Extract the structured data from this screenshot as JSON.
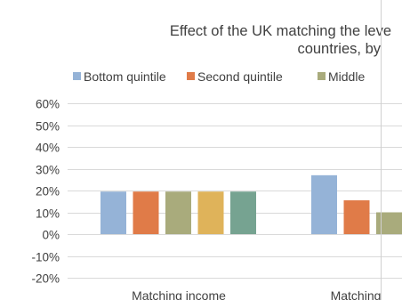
{
  "colors": {
    "background": "#ffffff",
    "text": "#404040",
    "gridline": "#d9d9d9",
    "zero_line": "#d9d9d9",
    "frame_edge": "#d0d0d0"
  },
  "chart_data": {
    "type": "bar",
    "title_lines": [
      "Effect of the UK matching the leve",
      "countries, by"
    ],
    "xlabel": "",
    "ylabel": "",
    "categories": [
      "Matching income",
      "Matching"
    ],
    "series": [
      {
        "name": "Bottom quintile",
        "color": "#95b3d7",
        "values": [
          19.5,
          27
        ]
      },
      {
        "name": "Second quintile",
        "color": "#e07b48",
        "values": [
          19.5,
          15.5
        ]
      },
      {
        "name": "Middle",
        "color": "#a9ab7c",
        "values": [
          19.5,
          10
        ]
      },
      {
        "name": "",
        "color": "#dfb35a",
        "values": [
          19.5,
          null
        ]
      },
      {
        "name": "",
        "color": "#76a391",
        "values": [
          19.5,
          null
        ]
      }
    ],
    "yticks": [
      "60%",
      "50%",
      "40%",
      "30%",
      "20%",
      "10%",
      "0%",
      "-10%",
      "-20%"
    ],
    "ylim": [
      -20,
      60
    ],
    "ytick_step": 10,
    "grid": true,
    "legend_position": "top"
  }
}
